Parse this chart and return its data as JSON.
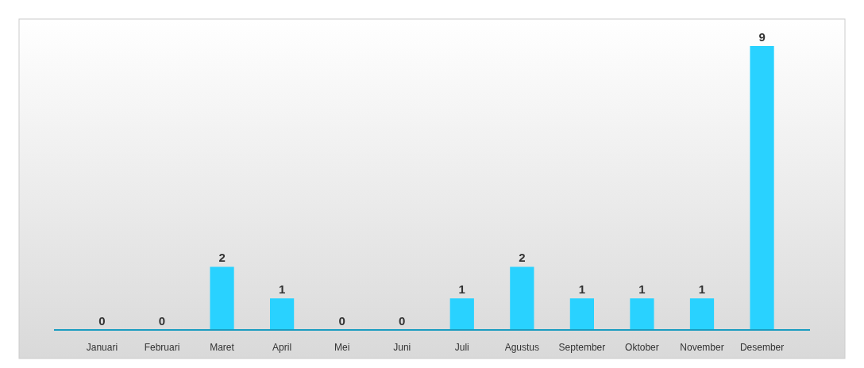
{
  "chart_data": {
    "type": "bar",
    "categories": [
      "Januari",
      "Februari",
      "Maret",
      "April",
      "Mei",
      "Juni",
      "Juli",
      "Agustus",
      "September",
      "Oktober",
      "November",
      "Desember"
    ],
    "values": [
      0,
      0,
      2,
      1,
      0,
      0,
      1,
      2,
      1,
      1,
      1,
      9
    ],
    "color": "#29d2ff",
    "data_labels": true
  }
}
